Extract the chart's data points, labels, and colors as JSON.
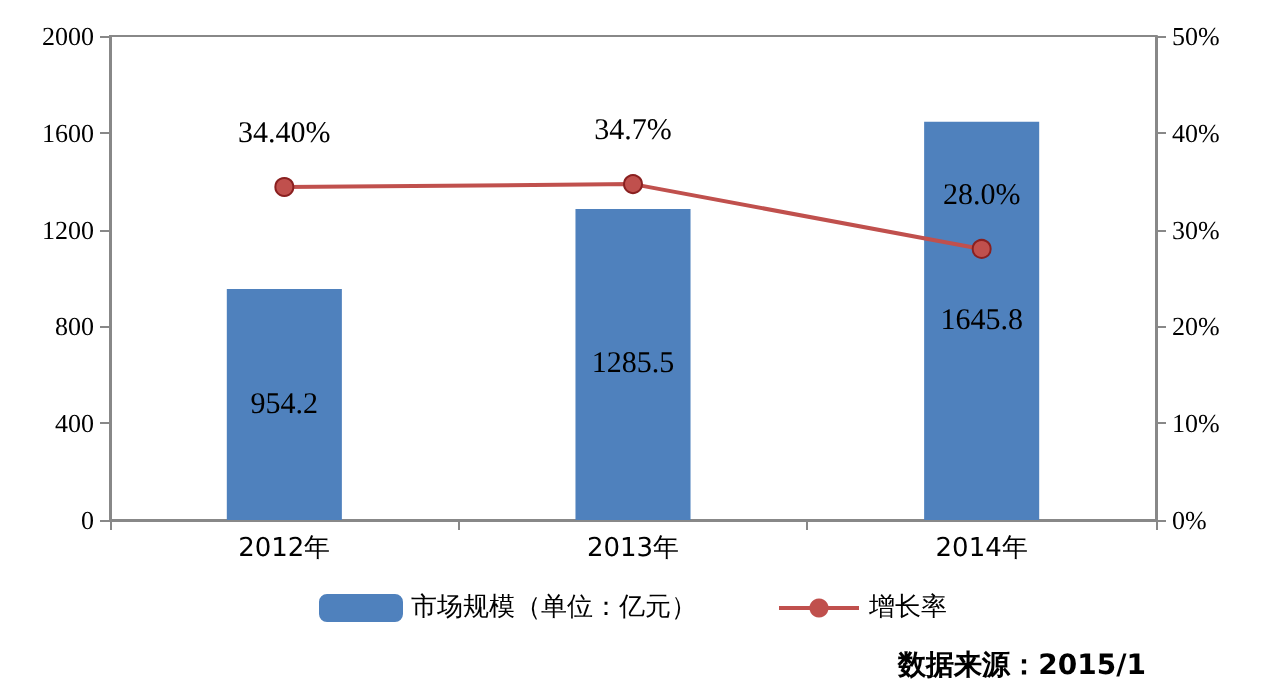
{
  "chart_data": {
    "type": "bar",
    "categories": [
      "2012年",
      "2013年",
      "2014年"
    ],
    "series": [
      {
        "name": "市场规模（单位：亿元）",
        "color": "#4f81bd",
        "values": [
          954.2,
          1285.5,
          1645.8
        ],
        "value_labels": [
          "954.2",
          "1285.5",
          "1645.8"
        ]
      },
      {
        "name": "增长率",
        "type": "line",
        "axis": "y2",
        "color": "#c0504d",
        "values": [
          34.4,
          34.7,
          28.0
        ],
        "value_labels": [
          "34.40%",
          "34.7%",
          "28.0%"
        ]
      }
    ],
    "ylim": [
      0,
      2000
    ],
    "yticks": [
      0,
      400,
      800,
      1200,
      1600,
      2000
    ],
    "y2lim": [
      0,
      50
    ],
    "y2ticks": [
      {
        "value": 0,
        "label": "0%"
      },
      {
        "value": 10,
        "label": "10%"
      },
      {
        "value": 20,
        "label": "20%"
      },
      {
        "value": 30,
        "label": "30%"
      },
      {
        "value": 40,
        "label": "40%"
      },
      {
        "value": 50,
        "label": "50%"
      }
    ],
    "marker": "circle",
    "grid": false,
    "legend": "bottom",
    "annotations": [
      "数据来源：2015/1"
    ]
  }
}
